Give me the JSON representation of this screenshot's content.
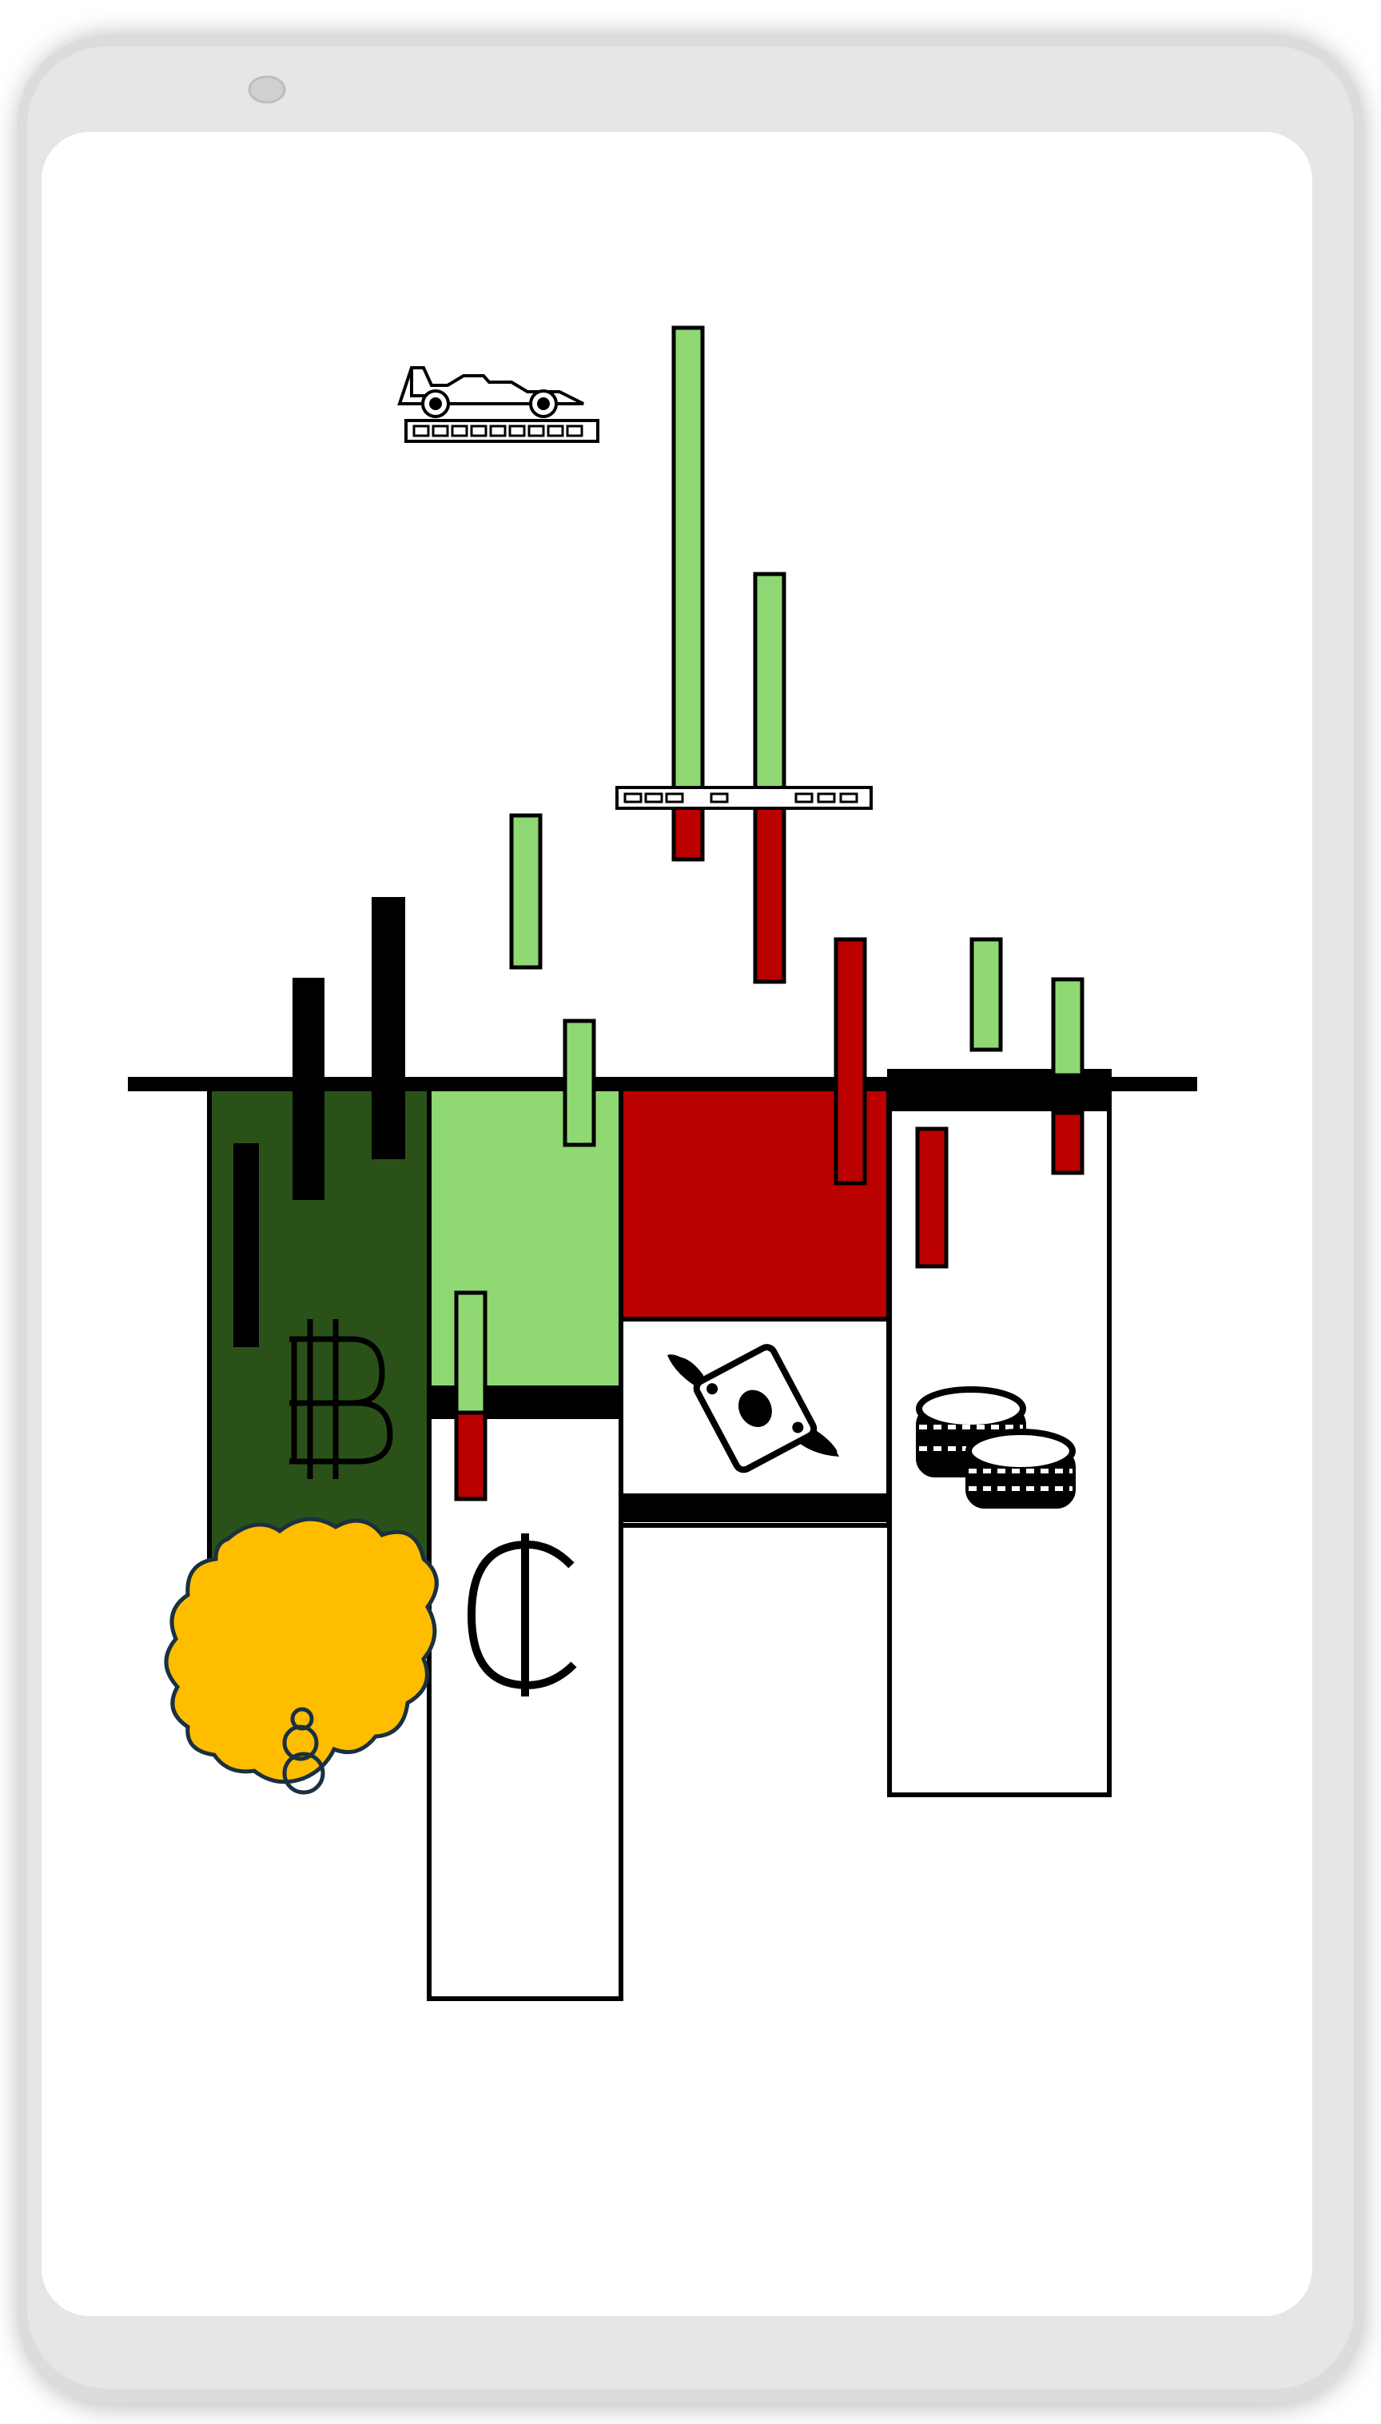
{
  "colors": {
    "background": "#ffffff",
    "frame_outer": "#d8d8d8",
    "frame_inner": "#e4e4e4",
    "screen": "#ffffff",
    "dark_green": "#2a5218",
    "light_green": "#8fd873",
    "red": "#bb0000",
    "black": "#000000",
    "yellow": "#ffbd00",
    "cloud_stroke": "#1a3040"
  },
  "icons": {
    "race_car": "race-car-icon",
    "bitcoin": "bitcoin-icon",
    "cedi": "cedi-icon",
    "flying_money": "flying-money-icon",
    "coins": "coins-stack-icon",
    "thought_cloud": "thought-cloud-icon",
    "brain": "brain-icon"
  },
  "symbols": {
    "bitcoin": "B",
    "cedi": "₵"
  }
}
